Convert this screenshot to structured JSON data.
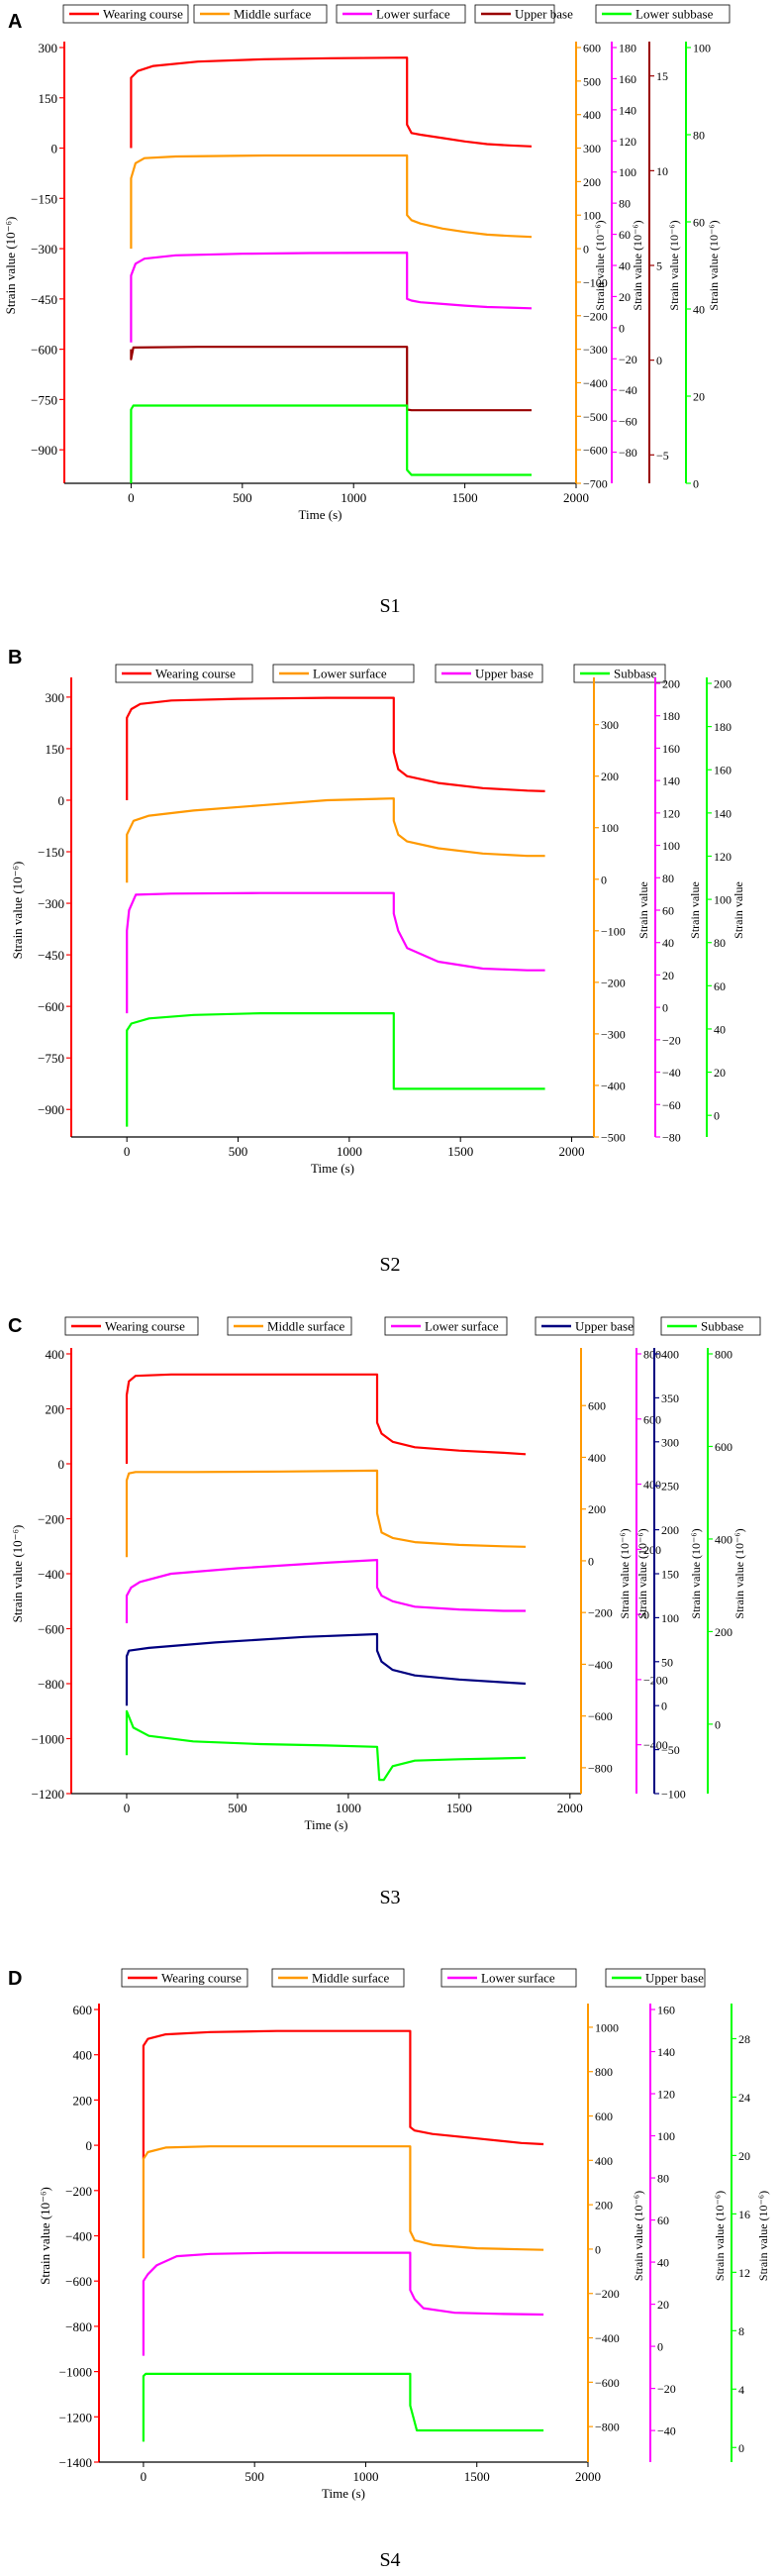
{
  "chart_data": [
    {
      "type": "line",
      "panel": "A",
      "caption": "S1",
      "xlabel": "Time (s)",
      "xlim": [
        -300,
        2000
      ],
      "xticks": [
        0,
        500,
        1000,
        1500,
        2000
      ],
      "ylabel_left": "Strain value (10⁻⁶)",
      "ylim": [
        -1000,
        300
      ],
      "yticks": [
        -900,
        -750,
        -600,
        -450,
        -300,
        -150,
        0,
        150,
        300
      ],
      "right_axes": [
        {
          "color": "#ff9900",
          "range": [
            -700,
            600
          ],
          "ticks": [
            -700,
            -600,
            -500,
            -400,
            -300,
            -200,
            -100,
            0,
            100,
            200,
            300,
            400,
            500,
            600
          ],
          "label": "Strain value (10⁻⁶)"
        },
        {
          "color": "#ff00ff",
          "range": [
            -100,
            180
          ],
          "ticks": [
            -80,
            -60,
            -40,
            -20,
            0,
            20,
            40,
            60,
            80,
            100,
            120,
            140,
            160,
            180
          ],
          "label": "Strain value (10⁻⁶)"
        },
        {
          "color": "#990000",
          "range": [
            -6.5,
            16.5
          ],
          "ticks": [
            -5,
            0,
            5,
            10,
            15
          ],
          "label": "Strain value (10⁻⁶)"
        },
        {
          "color": "#00ff00",
          "range": [
            0,
            100
          ],
          "ticks": [
            0,
            20,
            40,
            60,
            80,
            100
          ],
          "label": "Strain value (10⁻⁶)"
        }
      ],
      "series": [
        {
          "name": "Wearing course",
          "color": "#ff0000",
          "x": [
            0,
            0,
            30,
            100,
            300,
            600,
            900,
            1240,
            1240,
            1260,
            1300,
            1400,
            1500,
            1600,
            1700,
            1800
          ],
          "y": [
            0,
            210,
            230,
            245,
            258,
            265,
            268,
            270,
            70,
            45,
            40,
            30,
            20,
            12,
            8,
            5
          ]
        },
        {
          "name": "Middle surface",
          "color": "#ff9900",
          "x": [
            0,
            0,
            20,
            60,
            200,
            600,
            1000,
            1240,
            1240,
            1260,
            1300,
            1400,
            1500,
            1600,
            1700,
            1800
          ],
          "y": [
            -300,
            -90,
            -45,
            -30,
            -25,
            -22,
            -22,
            -22,
            -200,
            -215,
            -225,
            -240,
            -250,
            -258,
            -262,
            -265
          ]
        },
        {
          "name": "Lower surface",
          "color": "#ff00ff",
          "x": [
            0,
            0,
            20,
            60,
            200,
            500,
            800,
            1240,
            1240,
            1260,
            1300,
            1400,
            1500,
            1600,
            1700,
            1800
          ],
          "y": [
            -580,
            -380,
            -345,
            -330,
            -320,
            -315,
            -313,
            -312,
            -450,
            -455,
            -460,
            -465,
            -470,
            -474,
            -476,
            -478
          ]
        },
        {
          "name": "Upper base",
          "color": "#990000",
          "x": [
            0,
            0,
            10,
            300,
            700,
            1240,
            1240,
            1260,
            1500,
            1800
          ],
          "y": [
            -600,
            -630,
            -595,
            -593,
            -593,
            -593,
            -780,
            -782,
            -782,
            -782
          ]
        },
        {
          "name": "Lower subbase",
          "color": "#00ff00",
          "x": [
            0,
            0,
            10,
            300,
            800,
            1240,
            1240,
            1260,
            1500,
            1800
          ],
          "y": [
            -1000,
            -780,
            -768,
            -768,
            -768,
            -768,
            -960,
            -975,
            -975,
            -975
          ]
        }
      ]
    },
    {
      "type": "line",
      "panel": "B",
      "caption": "S2",
      "xlabel": "Time (s)",
      "xlim": [
        -250,
        2100
      ],
      "xticks": [
        0,
        500,
        1000,
        1500,
        2000
      ],
      "ylabel_left": "Strain value (10⁻⁶)",
      "ylim": [
        -980,
        340
      ],
      "yticks": [
        -900,
        -750,
        -600,
        -450,
        -300,
        -150,
        0,
        150,
        300
      ],
      "right_axes": [
        {
          "color": "#ff9900",
          "range": [
            -500,
            380
          ],
          "ticks": [
            -500,
            -400,
            -300,
            -200,
            -100,
            0,
            100,
            200,
            300
          ],
          "label": "Strain value"
        },
        {
          "color": "#ff00ff",
          "range": [
            -80,
            200
          ],
          "ticks": [
            -80,
            -60,
            -40,
            -20,
            0,
            20,
            40,
            60,
            80,
            100,
            120,
            140,
            160,
            180,
            200
          ],
          "label": "Strain value"
        },
        {
          "color": "#00ff00",
          "range": [
            -10,
            200
          ],
          "ticks": [
            0,
            20,
            40,
            60,
            80,
            100,
            120,
            140,
            160,
            180,
            200
          ],
          "label": "Strain value"
        }
      ],
      "series": [
        {
          "name": "Wearing course",
          "color": "#ff0000",
          "x": [
            0,
            0,
            20,
            60,
            200,
            500,
            900,
            1200,
            1200,
            1220,
            1260,
            1400,
            1600,
            1800,
            1880
          ],
          "y": [
            0,
            240,
            265,
            280,
            290,
            295,
            298,
            298,
            140,
            90,
            70,
            50,
            35,
            28,
            26
          ]
        },
        {
          "name": "Lower surface",
          "color": "#ff9900",
          "x": [
            0,
            0,
            30,
            100,
            300,
            600,
            900,
            1200,
            1200,
            1220,
            1260,
            1400,
            1600,
            1800,
            1880
          ],
          "y": [
            -240,
            -100,
            -60,
            -45,
            -30,
            -15,
            0,
            5,
            -60,
            -100,
            -120,
            -140,
            -155,
            -162,
            -162
          ]
        },
        {
          "name": "Upper base",
          "color": "#ff00ff",
          "x": [
            0,
            0,
            10,
            40,
            200,
            600,
            1000,
            1200,
            1200,
            1220,
            1260,
            1400,
            1600,
            1800,
            1880
          ],
          "y": [
            -620,
            -380,
            -320,
            -275,
            -272,
            -270,
            -270,
            -270,
            -330,
            -380,
            -430,
            -470,
            -490,
            -495,
            -495
          ]
        },
        {
          "name": "Subbase",
          "color": "#00ff00",
          "x": [
            0,
            0,
            20,
            100,
            300,
            600,
            1000,
            1200,
            1200,
            1220,
            1500,
            1880
          ],
          "y": [
            -950,
            -670,
            -650,
            -635,
            -625,
            -620,
            -620,
            -620,
            -840,
            -840,
            -840,
            -840
          ]
        }
      ]
    },
    {
      "type": "line",
      "panel": "C",
      "caption": "S3",
      "xlabel": "Time (s)",
      "xlim": [
        -250,
        2050
      ],
      "xticks": [
        0,
        500,
        1000,
        1500,
        2000
      ],
      "ylabel_left": "Strain value (10⁻⁶)",
      "ylim": [
        -1200,
        400
      ],
      "yticks": [
        -1200,
        -1000,
        -800,
        -600,
        -400,
        -200,
        0,
        200,
        400
      ],
      "right_axes": [
        {
          "color": "#ff9900",
          "range": [
            -900,
            800
          ],
          "ticks": [
            -800,
            -600,
            -400,
            -200,
            0,
            200,
            400,
            600
          ],
          "label": "Strain value (10⁻⁶)"
        },
        {
          "color": "#ff00ff",
          "range": [
            -550,
            800
          ],
          "ticks": [
            -400,
            -200,
            0,
            200,
            400,
            600,
            800
          ],
          "label": "Strain value (10⁻⁶)"
        },
        {
          "color": "#000080",
          "range": [
            -100,
            400
          ],
          "ticks": [
            -100,
            -50,
            0,
            50,
            100,
            150,
            200,
            250,
            300,
            350,
            400
          ],
          "label": "Strain value (10⁻⁶)"
        },
        {
          "color": "#00ff00",
          "range": [
            -150,
            800
          ],
          "ticks": [
            0,
            200,
            400,
            600,
            800
          ],
          "label": "Strain value (10⁻⁶)"
        }
      ],
      "series": [
        {
          "name": "Wearing course",
          "color": "#ff0000",
          "x": [
            0,
            0,
            10,
            40,
            200,
            600,
            1000,
            1130,
            1130,
            1150,
            1200,
            1300,
            1500,
            1700,
            1800
          ],
          "y": [
            0,
            250,
            300,
            320,
            325,
            325,
            325,
            325,
            150,
            110,
            80,
            60,
            48,
            40,
            35
          ]
        },
        {
          "name": "Middle surface",
          "color": "#ff9900",
          "x": [
            0,
            0,
            10,
            40,
            300,
            700,
            1130,
            1130,
            1150,
            1200,
            1300,
            1500,
            1700,
            1800
          ],
          "y": [
            -340,
            -60,
            -35,
            -30,
            -30,
            -28,
            -25,
            -180,
            -250,
            -270,
            -285,
            -295,
            -300,
            -302
          ]
        },
        {
          "name": "Lower surface",
          "color": "#ff00ff",
          "x": [
            0,
            0,
            20,
            60,
            200,
            500,
            900,
            1130,
            1130,
            1150,
            1200,
            1300,
            1500,
            1700,
            1800
          ],
          "y": [
            -580,
            -480,
            -450,
            -430,
            -400,
            -380,
            -360,
            -350,
            -450,
            -480,
            -500,
            -520,
            -530,
            -535,
            -535
          ]
        },
        {
          "name": "Upper base",
          "color": "#000080",
          "x": [
            0,
            0,
            10,
            100,
            400,
            800,
            1130,
            1130,
            1150,
            1200,
            1300,
            1500,
            1700,
            1800
          ],
          "y": [
            -880,
            -700,
            -680,
            -670,
            -650,
            -630,
            -620,
            -680,
            -720,
            -750,
            -770,
            -785,
            -795,
            -800
          ]
        },
        {
          "name": "Subbase",
          "color": "#00ff00",
          "x": [
            0,
            0,
            30,
            100,
            300,
            600,
            900,
            1130,
            1140,
            1160,
            1200,
            1300,
            1500,
            1800
          ],
          "y": [
            -1060,
            -900,
            -960,
            -990,
            -1010,
            -1020,
            -1025,
            -1030,
            -1150,
            -1150,
            -1100,
            -1080,
            -1075,
            -1070
          ]
        }
      ]
    },
    {
      "type": "line",
      "panel": "D",
      "caption": "S4",
      "xlabel": "Time (s)",
      "xlim": [
        -200,
        2000
      ],
      "xticks": [
        0,
        500,
        1000,
        1500,
        2000
      ],
      "ylabel_left": "Strain value (10⁻⁶)",
      "ylim": [
        -1400,
        600
      ],
      "yticks": [
        -1400,
        -1200,
        -1000,
        -800,
        -600,
        -400,
        -200,
        0,
        200,
        400,
        600
      ],
      "right_axes": [
        {
          "color": "#ff9900",
          "range": [
            -960,
            1080
          ],
          "ticks": [
            -800,
            -600,
            -400,
            -200,
            0,
            200,
            400,
            600,
            800,
            1000
          ],
          "label": "Strain value (10⁻⁶)"
        },
        {
          "color": "#ff00ff",
          "range": [
            -55,
            160
          ],
          "ticks": [
            -40,
            -20,
            0,
            20,
            40,
            60,
            80,
            100,
            120,
            140,
            160
          ],
          "label": "Strain value (10⁻⁶)"
        },
        {
          "color": "#00ff00",
          "range": [
            -1,
            30
          ],
          "ticks": [
            0,
            4,
            8,
            12,
            16,
            20,
            24,
            28
          ],
          "label": "Strain value (10⁻⁶)"
        }
      ],
      "series": [
        {
          "name": "Wearing course",
          "color": "#ff0000",
          "x": [
            0,
            0,
            20,
            100,
            300,
            600,
            1000,
            1200,
            1200,
            1220,
            1300,
            1500,
            1700,
            1800
          ],
          "y": [
            -60,
            440,
            470,
            490,
            500,
            505,
            505,
            505,
            80,
            65,
            50,
            30,
            10,
            5
          ]
        },
        {
          "name": "Middle surface",
          "color": "#ff9900",
          "x": [
            0,
            0,
            20,
            100,
            300,
            600,
            1000,
            1200,
            1200,
            1220,
            1300,
            1500,
            1700,
            1800
          ],
          "y": [
            -500,
            -60,
            -30,
            -10,
            -5,
            -5,
            -5,
            -5,
            -380,
            -420,
            -440,
            -455,
            -460,
            -462
          ]
        },
        {
          "name": "Lower surface",
          "color": "#ff00ff",
          "x": [
            0,
            0,
            20,
            60,
            150,
            300,
            600,
            1000,
            1200,
            1200,
            1220,
            1260,
            1400,
            1600,
            1800
          ],
          "y": [
            -930,
            -600,
            -570,
            -530,
            -490,
            -480,
            -475,
            -475,
            -475,
            -640,
            -680,
            -720,
            -740,
            -745,
            -748
          ]
        },
        {
          "name": "Upper base",
          "color": "#00ff00",
          "x": [
            0,
            0,
            10,
            300,
            800,
            1200,
            1200,
            1230,
            1500,
            1800
          ],
          "y": [
            -1310,
            -1020,
            -1010,
            -1010,
            -1010,
            -1010,
            -1150,
            -1260,
            -1260,
            -1260
          ]
        }
      ]
    }
  ]
}
